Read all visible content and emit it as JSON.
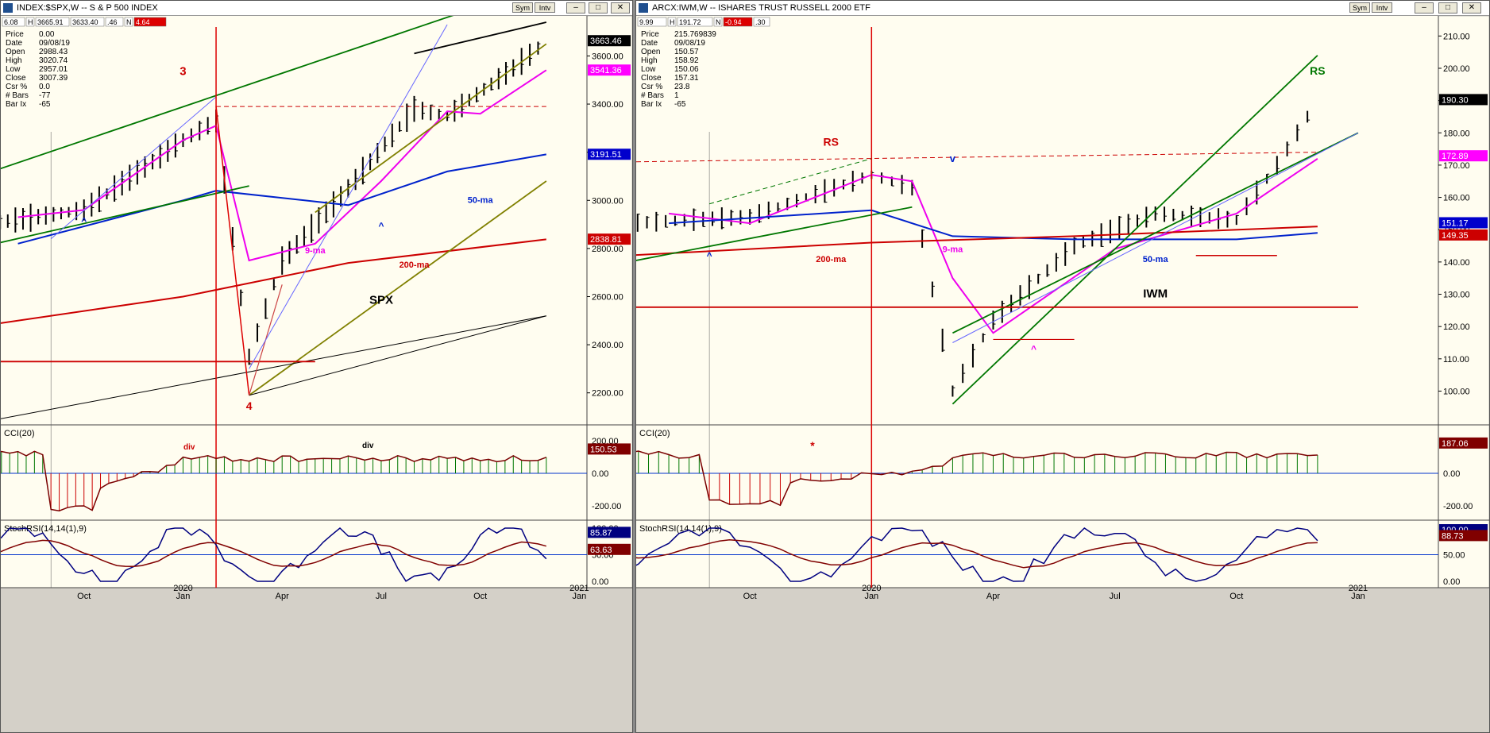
{
  "left": {
    "title": "INDEX:$SPX,W -- S & P 500 INDEX",
    "buttons": [
      "Sym",
      "Intv"
    ],
    "header_fields": [
      "6.08",
      "H",
      "3665.91",
      "3633.40",
      ".46",
      "N",
      "4.64"
    ],
    "info_labels": [
      "Price",
      "Date",
      "Open",
      "High",
      "Low",
      "Close",
      "Csr %",
      "# Bars",
      "Bar Ix"
    ],
    "info_values": [
      "0.00",
      "09/08/19",
      "2988.43",
      "3020.74",
      "2957.01",
      "3007.39",
      "0.0",
      "-77",
      "-65"
    ],
    "x_ticks": [
      "Oct",
      "2020",
      "Jan",
      "Apr",
      "Jul",
      "Oct",
      "2021",
      "Jan"
    ],
    "price_ticks": [
      "3600.00",
      "3400.00",
      "3200.00",
      "3000.00",
      "2800.00",
      "2600.00",
      "2400.00",
      "2200.00"
    ],
    "price_badges": [
      "3663.46",
      "3541.36",
      "3191.51",
      "2838.81"
    ],
    "annotations": [
      "3",
      "4",
      "SPX",
      "9-ma",
      "50-ma",
      "200-ma",
      "v",
      "^",
      "^",
      "div",
      "div"
    ],
    "cci_label": "CCI(20)",
    "cci_ticks": [
      "200.00",
      "0.00",
      "-200.00"
    ],
    "cci_badge": "150.53",
    "rsi_label": "StochRSI(14,14(1),9)",
    "rsi_ticks": [
      "100.00",
      "50.00",
      "0.00"
    ],
    "rsi_badges": [
      "85.87",
      "63.63"
    ]
  },
  "right": {
    "title": "ARCX:IWM,W -- ISHARES TRUST RUSSELL 2000 ETF",
    "buttons": [
      "Sym",
      "Intv"
    ],
    "header_fields": [
      "9.99",
      "H",
      "191.72",
      "N",
      "-0.94",
      ".30"
    ],
    "info_labels": [
      "Price",
      "Date",
      "Open",
      "High",
      "Low",
      "Close",
      "Csr %",
      "# Bars",
      "Bar Ix"
    ],
    "info_values": [
      "215.769839",
      "09/08/19",
      "150.57",
      "158.92",
      "150.06",
      "157.31",
      "23.8",
      "1",
      "-65"
    ],
    "x_ticks": [
      "Oct",
      "2020",
      "Jan",
      "Apr",
      "Jul",
      "Oct",
      "2021",
      "Jan"
    ],
    "price_ticks": [
      "210.00",
      "200.00",
      "190.00",
      "180.00",
      "170.00",
      "160.00",
      "150.00",
      "140.00",
      "130.00",
      "120.00",
      "110.00",
      "100.00"
    ],
    "price_badges": [
      "190.30",
      "172.89",
      "151.17",
      "149.35"
    ],
    "annotations": [
      "RS",
      "RS",
      "IWM",
      "9-ma",
      "50-ma",
      "200-ma",
      "v",
      "^",
      "^",
      "*"
    ],
    "cci_label": "CCI(20)",
    "cci_ticks": [
      "200.00",
      "0.00",
      "-200.00"
    ],
    "cci_badge": "187.06",
    "rsi_label": "StochRSI(14,14(1),9)",
    "rsi_ticks": [
      "100.00",
      "50.00",
      "0.00"
    ],
    "rsi_badges": [
      "100.00",
      "88.73"
    ]
  },
  "colors": {
    "background": "#fffdf0",
    "badge_black": "#000000",
    "badge_magenta": "#ff00ff",
    "badge_blue": "#0000cc",
    "badge_red": "#cc0000",
    "badge_darkred": "#800000",
    "badge_navy": "#000080",
    "green": "#007700",
    "olive": "#808000"
  },
  "chart_data": [
    {
      "type": "line",
      "title": "SPX",
      "x_range": [
        "2019-07",
        "2021-02"
      ],
      "ylim": [
        2100,
        3750
      ],
      "series": [
        {
          "name": "9-ma",
          "x": [
            "2019-08",
            "2019-10",
            "2020-01",
            "2020-02",
            "2020-03",
            "2020-05",
            "2020-07",
            "2020-09",
            "2020-10",
            "2020-12"
          ],
          "values": [
            2930,
            2960,
            3250,
            3310,
            2750,
            2820,
            3080,
            3370,
            3360,
            3541
          ]
        },
        {
          "name": "50-ma",
          "x": [
            "2019-08",
            "2020-01",
            "2020-02",
            "2020-06",
            "2020-09",
            "2020-12"
          ],
          "values": [
            2820,
            3000,
            3040,
            2980,
            3120,
            3191
          ]
        },
        {
          "name": "200-ma",
          "x": [
            "2019-07",
            "2020-01",
            "2020-06",
            "2020-12"
          ],
          "values": [
            2480,
            2600,
            2740,
            2838
          ]
        }
      ],
      "levels": [
        {
          "label": "3",
          "x": "2020-02",
          "value": 3390
        },
        {
          "label": "4",
          "x": "2020-03",
          "value": 2192
        },
        {
          "label": "price",
          "x": "2020-12",
          "value": 3663
        }
      ]
    },
    {
      "type": "line",
      "title": "IWM",
      "x_range": [
        "2019-07",
        "2021-02"
      ],
      "ylim": [
        92,
        215
      ],
      "series": [
        {
          "name": "9-ma",
          "x": [
            "2019-08",
            "2019-10",
            "2020-01",
            "2020-02",
            "2020-03",
            "2020-04",
            "2020-07",
            "2020-10",
            "2020-12"
          ],
          "values": [
            155,
            152,
            167,
            165,
            135,
            118,
            144,
            155,
            172
          ]
        },
        {
          "name": "50-ma",
          "x": [
            "2019-08",
            "2020-01",
            "2020-03",
            "2020-06",
            "2020-10",
            "2020-12"
          ],
          "values": [
            152,
            156,
            148,
            147,
            147,
            149
          ]
        },
        {
          "name": "200-ma",
          "x": [
            "2019-07",
            "2020-01",
            "2020-06",
            "2020-12"
          ],
          "values": [
            142,
            146,
            148,
            151
          ]
        }
      ],
      "levels": [
        {
          "label": "RS",
          "x": "2020-01",
          "value": 174
        },
        {
          "label": "RS",
          "x": "2020-12",
          "value": 190
        },
        {
          "label": "price",
          "x": "2020-12",
          "value": 190.3
        }
      ]
    }
  ]
}
